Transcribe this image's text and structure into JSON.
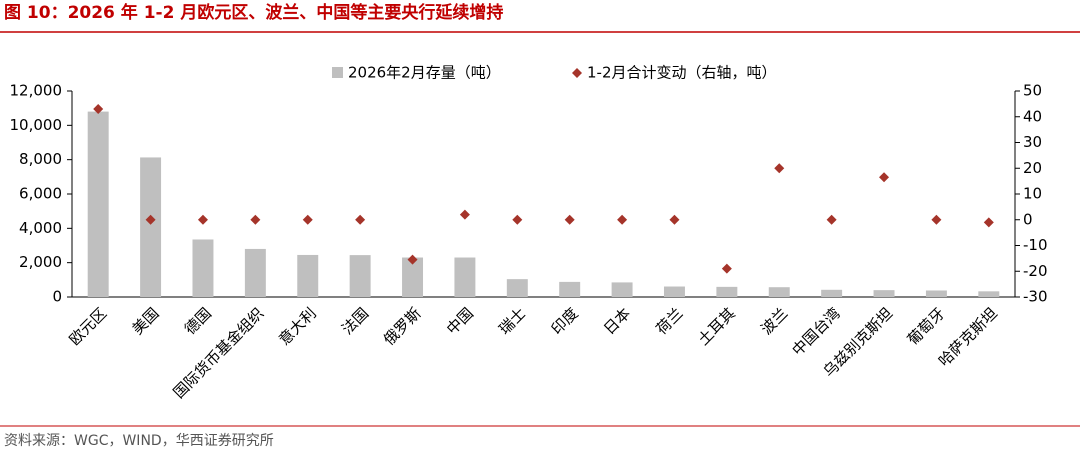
{
  "chart_data": {
    "type": "bar",
    "title": "图 10：2026 年 1-2 月欧元区、波兰、中国等主要央行延续增持",
    "source": "资料来源：WGC，WIND，华西证券研究所",
    "categories": [
      "欧元区",
      "美国",
      "德国",
      "国际货币基金组织",
      "意大利",
      "法国",
      "俄罗斯",
      "中国",
      "瑞士",
      "印度",
      "日本",
      "荷兰",
      "土耳其",
      "波兰",
      "中国台湾",
      "乌兹别克斯坦",
      "葡萄牙",
      "哈萨克斯坦"
    ],
    "series": [
      {
        "name": "2026年2月存量（吨）",
        "color": "#bfbfbf",
        "type": "bar",
        "values": [
          10800,
          8130,
          3350,
          2800,
          2450,
          2440,
          2300,
          2300,
          1040,
          880,
          850,
          610,
          590,
          570,
          420,
          400,
          380,
          330
        ]
      },
      {
        "name": "1-2月合计变动（右轴，吨）",
        "color": "#a5342a",
        "type": "scatter",
        "axis": "y2",
        "values": [
          43,
          0,
          0,
          0,
          0,
          0,
          -15.5,
          2,
          0,
          0,
          0,
          0,
          -19,
          20,
          0,
          16.5,
          0,
          -1
        ]
      }
    ],
    "ylim": [
      0,
      12000
    ],
    "yticks": [
      0,
      {
        "value": 2000,
        "label": "2,000"
      },
      {
        "value": 4000,
        "label": "4,000"
      },
      {
        "value": 6000,
        "label": "6,000"
      },
      {
        "value": 8000,
        "label": "8,000"
      },
      {
        "value": 10000,
        "label": "10,000"
      },
      {
        "value": 12000,
        "label": "12,000"
      }
    ],
    "y2lim": [
      -30,
      50
    ],
    "y2ticks": [
      -30,
      -20,
      -10,
      0,
      10,
      20,
      30,
      40,
      50
    ]
  }
}
